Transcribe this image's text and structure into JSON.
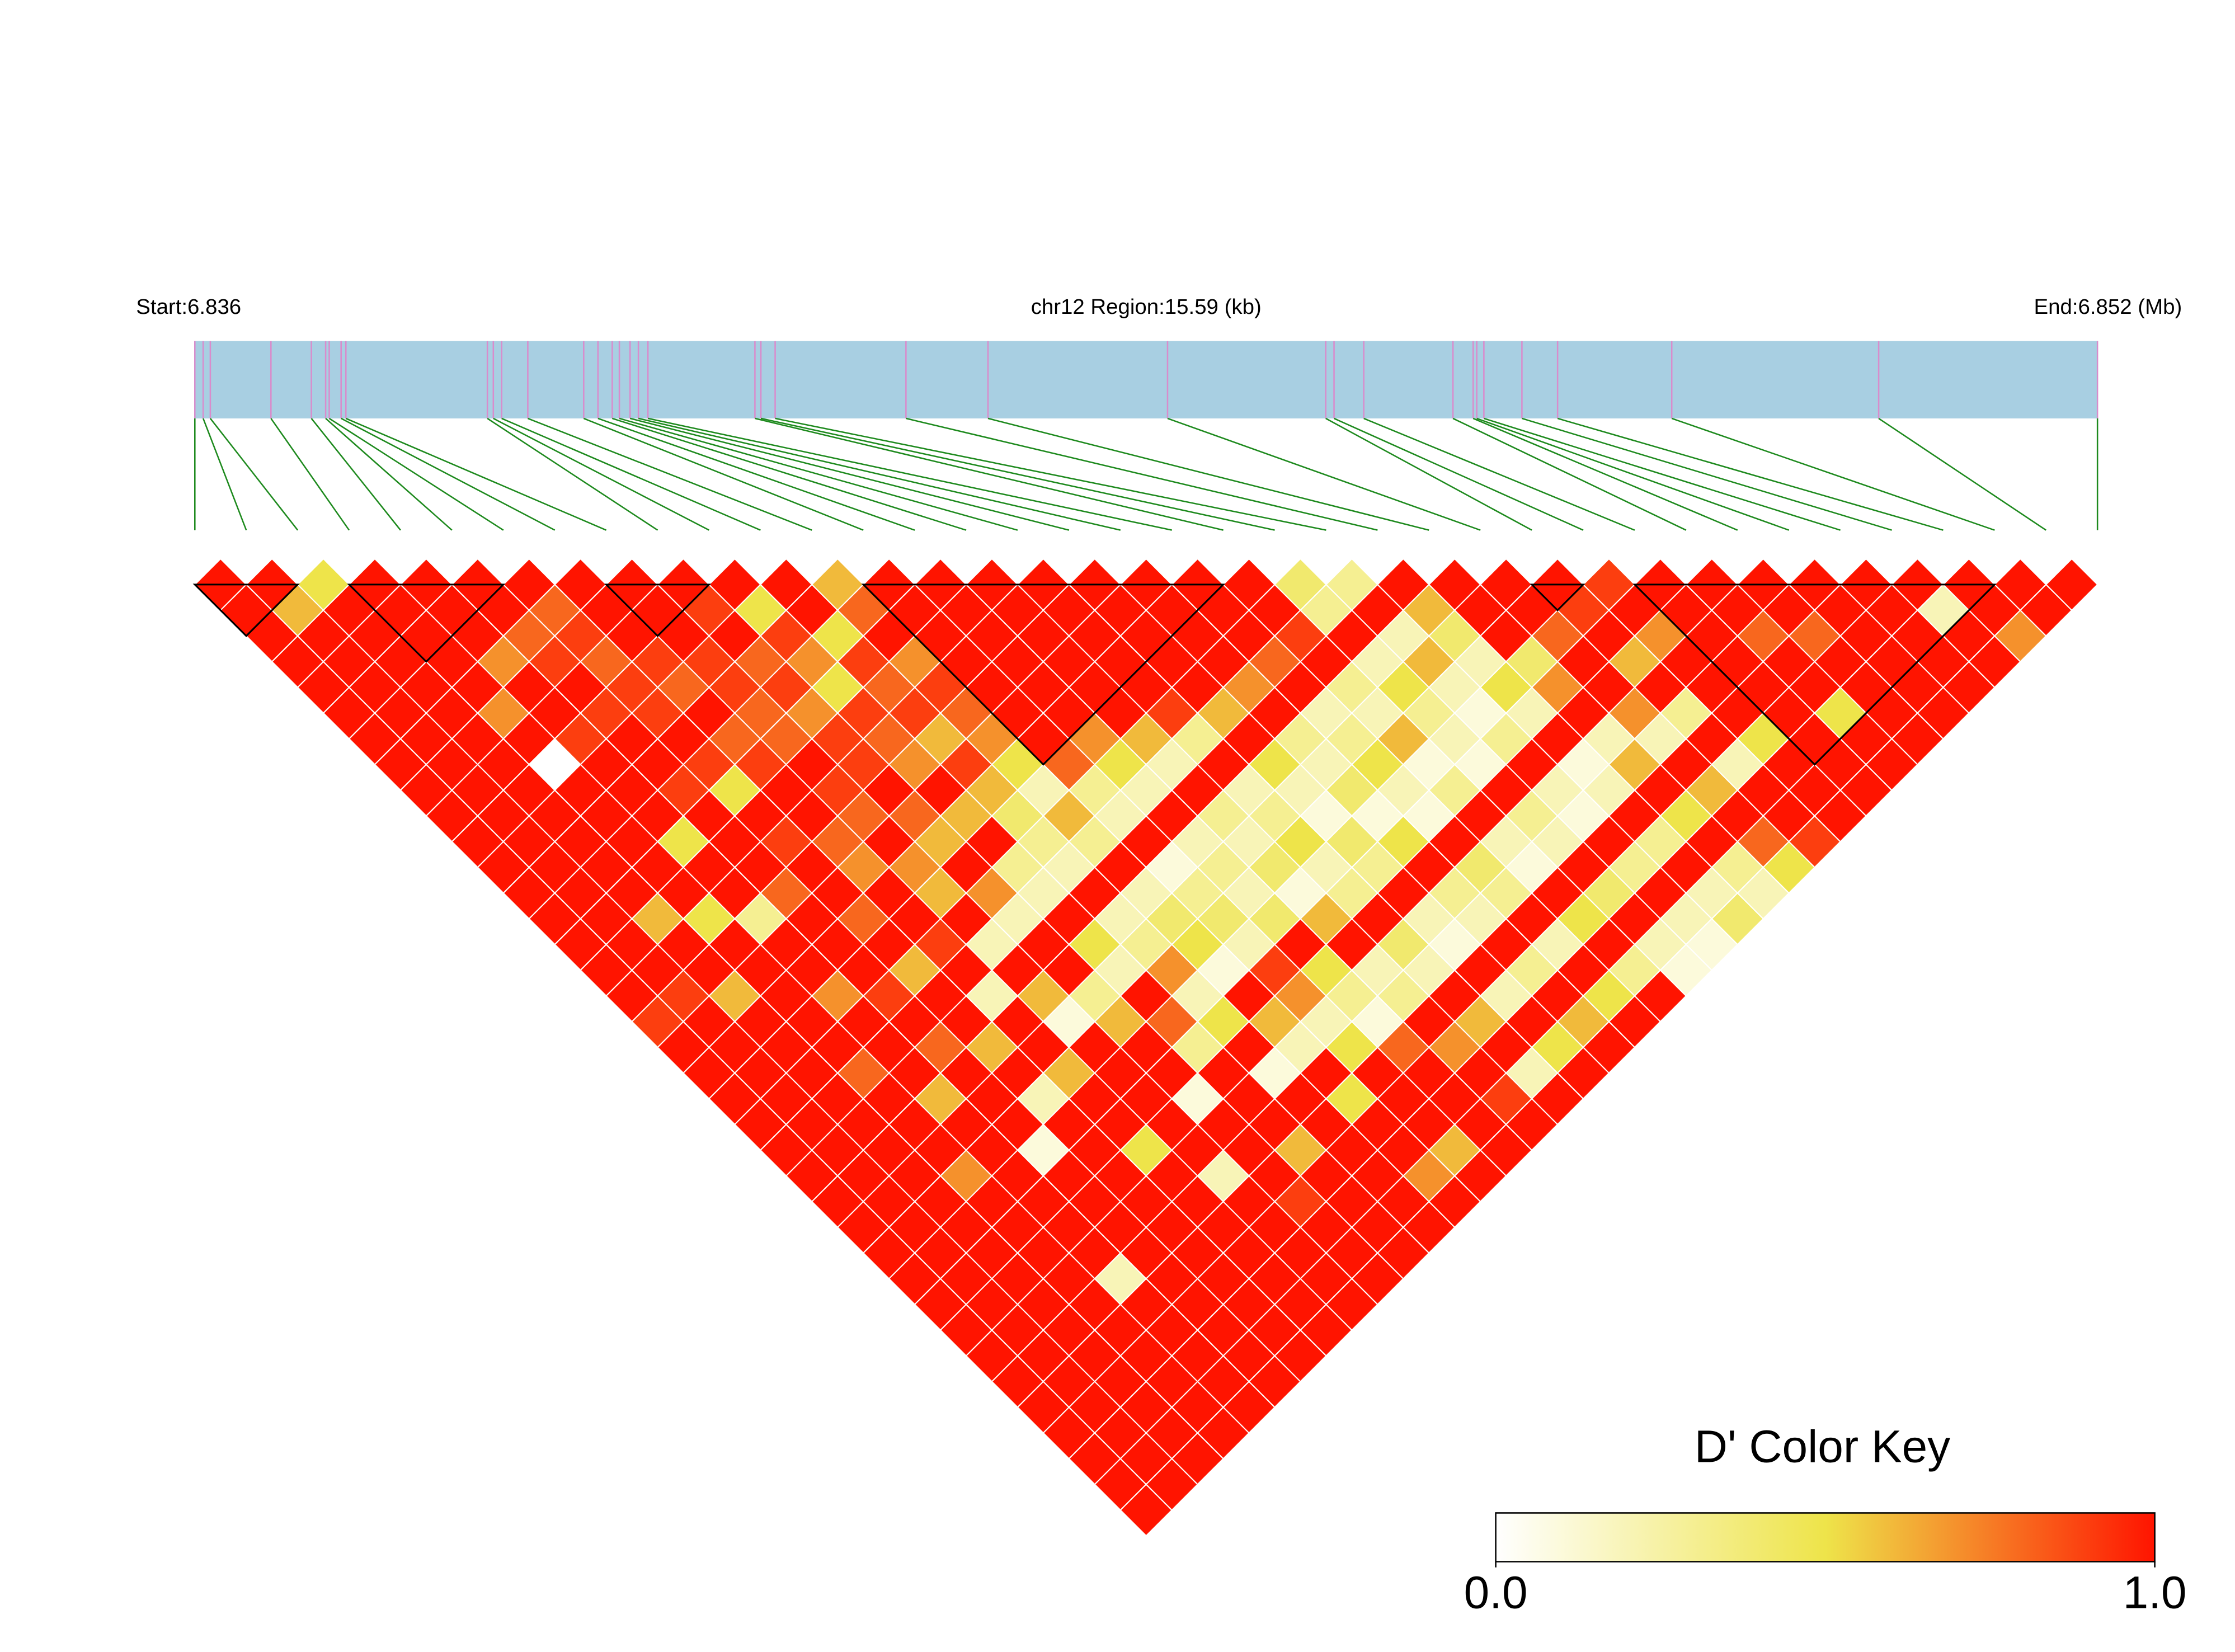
{
  "chart_data": {
    "type": "ld_heatmap",
    "start_label": "Start:6.836",
    "region_label": "chr12 Region:15.59 (kb)",
    "end_label": "End:6.852 (Mb)",
    "key_title": "D' Color Key",
    "xlim": [
      6.836,
      6.852
    ],
    "snp_positions": [
      6.836,
      6.83607,
      6.83613,
      6.83664,
      6.83698,
      6.8371,
      6.83713,
      6.83723,
      6.83727,
      6.83846,
      6.83851,
      6.83858,
      6.8388,
      6.83927,
      6.83939,
      6.83951,
      6.83957,
      6.83966,
      6.83973,
      6.83981,
      6.84071,
      6.84076,
      6.84088,
      6.84198,
      6.84267,
      6.84418,
      6.84551,
      6.84558,
      6.84583,
      6.84658,
      6.84675,
      6.84678,
      6.84684,
      6.84716,
      6.84746,
      6.84842,
      6.85016,
      6.852
    ],
    "track_color": "#a8cfe2",
    "marker_color": "#d98ccc",
    "connector_color": "#1e8a1e",
    "block_color": "#000000",
    "blocks": [
      [
        0,
        2
      ],
      [
        3,
        6
      ],
      [
        8,
        10
      ],
      [
        13,
        20
      ],
      [
        26,
        27
      ],
      [
        28,
        35
      ]
    ],
    "colors": [
      "#ffffff",
      "#eee44a",
      "#ff1400"
    ],
    "key_lim": [
      0,
      1
    ],
    "key_ticks": [
      {
        "value": 0,
        "label": "0.0"
      },
      {
        "value": 1,
        "label": "1.0"
      }
    ],
    "ld_matrix": [
      [
        1,
        1,
        1,
        1,
        1,
        1,
        1,
        1,
        1,
        1,
        1,
        1,
        1,
        1,
        1,
        1,
        1,
        0.9,
        1,
        1,
        1,
        1,
        1,
        1,
        1,
        1,
        1,
        1,
        1,
        1,
        1,
        1,
        1,
        1,
        1,
        1,
        1
      ],
      [
        1,
        0.6,
        1,
        1,
        1,
        1,
        1,
        1,
        1,
        1,
        1,
        1,
        1,
        1,
        1,
        1,
        0.9,
        1,
        1,
        1,
        1,
        1,
        1,
        1,
        1,
        1,
        1,
        1,
        1,
        1,
        1,
        1,
        1,
        1,
        1,
        1
      ],
      [
        0.5,
        1,
        1,
        1,
        1,
        1,
        1,
        1,
        1,
        1,
        1,
        1,
        1,
        0.6,
        1,
        1,
        0.6,
        1,
        1,
        1,
        1,
        1,
        1,
        1,
        1,
        1,
        1,
        1,
        1,
        1,
        1,
        1,
        1,
        1,
        1
      ],
      [
        1,
        1,
        1,
        1,
        1,
        0.7,
        1,
        0,
        1,
        1,
        1,
        1,
        1,
        0.5,
        1,
        1,
        1,
        1,
        1,
        0.8,
        1,
        1,
        1,
        0.7,
        1,
        1,
        1,
        1,
        1,
        1,
        1,
        1,
        1,
        1
      ],
      [
        1,
        1,
        1,
        0.7,
        1,
        1,
        0.9,
        1,
        1,
        1,
        0.5,
        1,
        1,
        0.3,
        1,
        1,
        0.7,
        1,
        1,
        1,
        0.6,
        1,
        1,
        1,
        1,
        1,
        1,
        0.2,
        1,
        1,
        1,
        1,
        1
      ],
      [
        1,
        1,
        0.8,
        0.9,
        1,
        0.9,
        1,
        1,
        0.9,
        1,
        1,
        1,
        0.8,
        1,
        1,
        1,
        0.9,
        1,
        0.8,
        1,
        1,
        1,
        0.1,
        1,
        1,
        1,
        1,
        1,
        1,
        1,
        1,
        1
      ],
      [
        1,
        0.8,
        0.9,
        0.8,
        0.9,
        0.9,
        1,
        0.9,
        0.5,
        1,
        0.9,
        1,
        1,
        0.8,
        1,
        0.6,
        1,
        1,
        0.6,
        1,
        0.2,
        1,
        1,
        1,
        1,
        1,
        1,
        1,
        1,
        1,
        1
      ],
      [
        1,
        1,
        1,
        0.9,
        0.8,
        1,
        0.8,
        0.9,
        1,
        1,
        0.8,
        0.7,
        1,
        1,
        0.9,
        1,
        0.2,
        1,
        1,
        0.6,
        1,
        1,
        0.5,
        1,
        1,
        1,
        1,
        1,
        1,
        1
      ],
      [
        1,
        1,
        1,
        0.9,
        0.9,
        0.8,
        0.8,
        1,
        0.9,
        0.8,
        1,
        0.7,
        0.6,
        1,
        0.2,
        1,
        0.6,
        0.1,
        1,
        1,
        1,
        1,
        1,
        0.2,
        1,
        1,
        1,
        1,
        1
      ],
      [
        1,
        0.9,
        1,
        0.8,
        0.9,
        0.7,
        0.9,
        0.9,
        1,
        0.8,
        0.6,
        1,
        0.7,
        0.2,
        1,
        1,
        0.3,
        0.6,
        1,
        1,
        0.1,
        1,
        1,
        1,
        0.9,
        1,
        1,
        1
      ],
      [
        1,
        0.5,
        0.9,
        0.7,
        0.5,
        0.9,
        0.8,
        0.7,
        1,
        0.6,
        1,
        0.3,
        0.2,
        1,
        0.5,
        0.2,
        1,
        0.8,
        0.3,
        1,
        1,
        1,
        0.6,
        1,
        1,
        1,
        1
      ],
      [
        1,
        1,
        0.5,
        0.9,
        0.8,
        0.9,
        0.6,
        0.9,
        0.6,
        0.4,
        0.3,
        0.2,
        1,
        0.2,
        0.3,
        0.7,
        0.2,
        0.5,
        1,
        0.1,
        1,
        1,
        1,
        1,
        1,
        1
      ],
      [
        0.6,
        0.8,
        1,
        0.7,
        0.9,
        0.8,
        0.7,
        0.5,
        0.2,
        0.6,
        0.3,
        1,
        0.2,
        0.4,
        0.5,
        0.1,
        1,
        0.6,
        0.2,
        1,
        0.5,
        1,
        1,
        0.7,
        1
      ],
      [
        1,
        1,
        1,
        1,
        1,
        1,
        1,
        0.8,
        0.3,
        0.2,
        1,
        0.1,
        0.3,
        0.4,
        0.2,
        0.9,
        0.7,
        0.2,
        0.5,
        1,
        1,
        1,
        0.6,
        1
      ],
      [
        1,
        1,
        1,
        1,
        1,
        1,
        0.7,
        0.5,
        0.2,
        1,
        0.2,
        0.3,
        0.2,
        0.4,
        1,
        0.5,
        0.3,
        0.1,
        0.8,
        1,
        1,
        1,
        1
      ],
      [
        1,
        1,
        1,
        1,
        1,
        1,
        0.6,
        0.2,
        1,
        0.3,
        0.2,
        0.4,
        0.1,
        0.6,
        1,
        0.2,
        0.3,
        1,
        0.7,
        1,
        0.9,
        1
      ],
      [
        1,
        1,
        1,
        1,
        1,
        0.9,
        0.3,
        1,
        0.2,
        0.3,
        0.5,
        0.2,
        0.3,
        1,
        0.4,
        0.2,
        1,
        0.6,
        1,
        0.2,
        1
      ],
      [
        1,
        1,
        1,
        1,
        1,
        0.6,
        1,
        0.5,
        0.2,
        0.1,
        0.4,
        0.3,
        1,
        0.2,
        0.1,
        1,
        0.2,
        1,
        0.5,
        1
      ],
      [
        1,
        1,
        1,
        1,
        0.7,
        1,
        0.3,
        0.2,
        0.4,
        0.1,
        0.5,
        1,
        0.3,
        0.2,
        1,
        0.3,
        1,
        0.6,
        1
      ],
      [
        1,
        1,
        1,
        0.8,
        1,
        0.2,
        0.3,
        0.5,
        0.2,
        0.1,
        1,
        0.4,
        0.3,
        1,
        0.2,
        1,
        0.5,
        1
      ],
      [
        1,
        1,
        0.9,
        1,
        0.3,
        0.2,
        0.6,
        0.1,
        0.3,
        1,
        0.2,
        0.1,
        1,
        0.5,
        1,
        0.3,
        1
      ],
      [
        0.4,
        0.3,
        1,
        0.2,
        0.5,
        0.3,
        0.2,
        0.1,
        1,
        0.3,
        0.2,
        1,
        0.4,
        1,
        0.2,
        0.1
      ],
      [
        0.3,
        1,
        0.2,
        0.6,
        0.2,
        0.1,
        0.3,
        1,
        0.2,
        0.1,
        1,
        0.3,
        1,
        0.2,
        0.1
      ],
      [
        1,
        0.6,
        0.4,
        0.2,
        0.5,
        0.2,
        1,
        0.1,
        0.2,
        1,
        0.3,
        1,
        0.2,
        0.4
      ],
      [
        1,
        1,
        1,
        0.4,
        0.7,
        1,
        0.2,
        0.6,
        1,
        0.5,
        1,
        0.3,
        0.2
      ],
      [
        1,
        1,
        0.8,
        1,
        1,
        0.7,
        0.2,
        1,
        0.6,
        1,
        0.8,
        0.5
      ],
      [
        1,
        0.9,
        1,
        0.6,
        1,
        0.3,
        1,
        0.2,
        1,
        1,
        0.9
      ],
      [
        0.9,
        1,
        0.7,
        1,
        1,
        1,
        0.5,
        1,
        1,
        1
      ],
      [
        1,
        1,
        1,
        1,
        1,
        1,
        1,
        1,
        1
      ],
      [
        1,
        1,
        0.8,
        1,
        1,
        0.5,
        1,
        1
      ],
      [
        1,
        1,
        0.8,
        1,
        1,
        1,
        1
      ],
      [
        1,
        1,
        1,
        1,
        1,
        1
      ],
      [
        1,
        1,
        1,
        1,
        1
      ],
      [
        1,
        0.2,
        1,
        1
      ],
      [
        1,
        1,
        0.7
      ],
      [
        1,
        1
      ],
      [
        1
      ]
    ]
  }
}
